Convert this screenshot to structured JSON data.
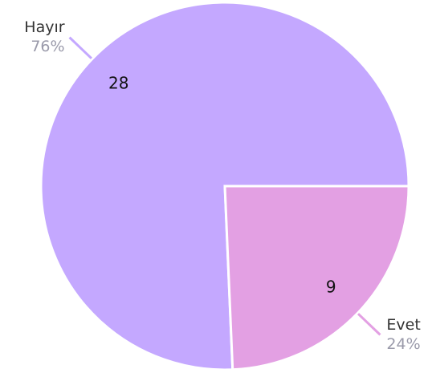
{
  "chart_data": {
    "type": "pie",
    "categories": [
      "Hayır",
      "Evet"
    ],
    "values": [
      28,
      9
    ],
    "percent_labels": [
      "76%",
      "24%"
    ],
    "colors": [
      "#c4a8ff",
      "#e3a0e3"
    ]
  }
}
